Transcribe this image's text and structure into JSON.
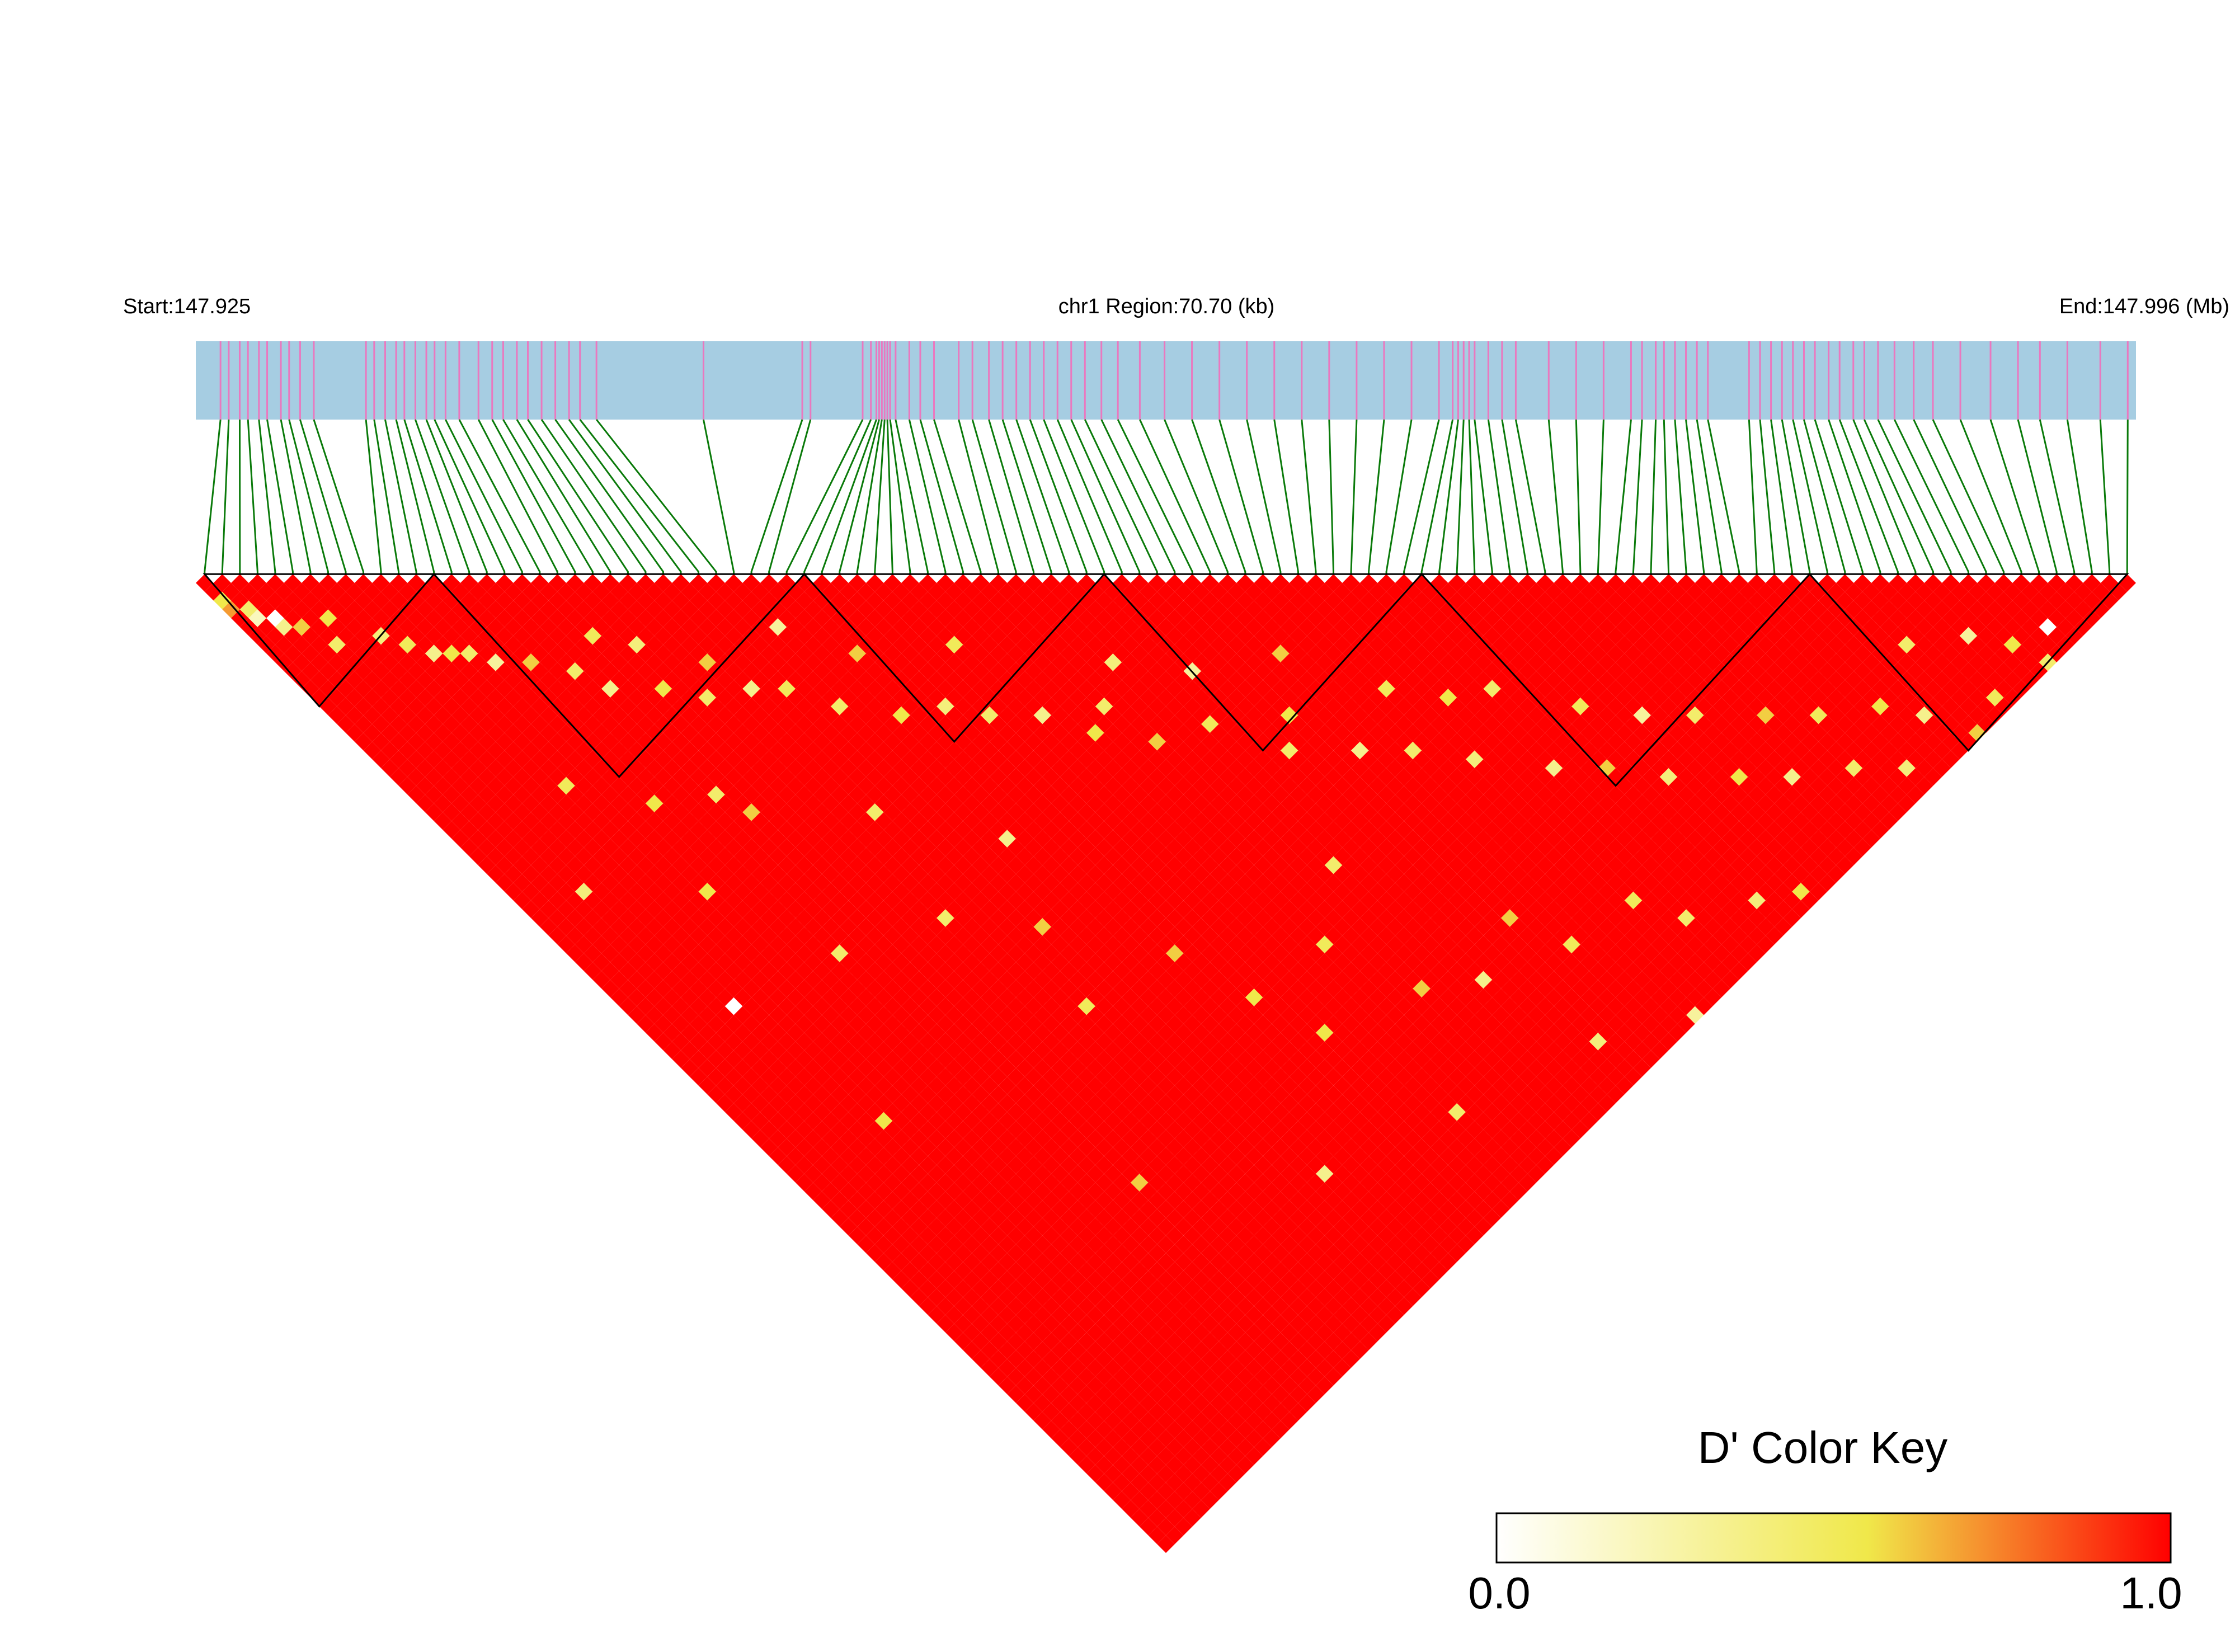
{
  "chart_data": {
    "type": "heatmap",
    "header": {
      "start_label": "Start:147.925",
      "region_label": "chr1 Region:70.70 (kb)",
      "end_label": "End:147.996 (Mb)"
    },
    "region": {
      "chrom": "chr1",
      "start_mb": 147.925,
      "end_mb": 147.996,
      "length_kb": 70.7
    },
    "snp_count": 110,
    "snp_positions_kb": [
      0.9,
      1.2,
      1.6,
      1.9,
      2.3,
      2.6,
      3.1,
      3.4,
      3.8,
      4.3,
      6.2,
      6.5,
      6.9,
      7.3,
      7.6,
      8.0,
      8.4,
      8.7,
      9.1,
      9.6,
      10.3,
      10.8,
      11.2,
      11.7,
      12.1,
      12.6,
      13.1,
      13.6,
      14.0,
      14.6,
      18.5,
      22.1,
      22.4,
      24.3,
      24.6,
      24.8,
      24.9,
      25.0,
      25.1,
      25.2,
      25.3,
      25.5,
      26.0,
      26.4,
      26.9,
      27.8,
      28.3,
      28.9,
      29.4,
      29.9,
      30.4,
      30.9,
      31.4,
      31.9,
      32.4,
      33.0,
      33.6,
      34.4,
      35.3,
      36.3,
      37.3,
      38.3,
      39.3,
      40.3,
      41.3,
      42.3,
      43.3,
      44.3,
      45.3,
      45.8,
      46.0,
      46.2,
      46.4,
      46.6,
      47.1,
      47.6,
      48.1,
      49.3,
      50.3,
      51.3,
      52.3,
      52.7,
      53.2,
      53.5,
      53.9,
      54.3,
      54.7,
      55.1,
      56.6,
      57.0,
      57.4,
      57.8,
      58.2,
      58.6,
      59.0,
      59.5,
      59.9,
      60.4,
      60.8,
      61.3,
      61.9,
      62.6,
      63.3,
      64.3,
      65.4,
      66.4,
      67.2,
      68.2,
      69.4,
      70.4
    ],
    "blocks": [
      {
        "from_snp": 1,
        "to_snp": 14
      },
      {
        "from_snp": 14,
        "to_snp": 35
      },
      {
        "from_snp": 35,
        "to_snp": 52
      },
      {
        "from_snp": 52,
        "to_snp": 70
      },
      {
        "from_snp": 70,
        "to_snp": 92
      },
      {
        "from_snp": 92,
        "to_snp": 110
      }
    ],
    "dprime_default": 1.0,
    "dprime_cells": [
      [
        1,
        3,
        0.55
      ],
      [
        1,
        4,
        0.7
      ],
      [
        2,
        5,
        0.45
      ],
      [
        2,
        6,
        0.2
      ],
      [
        3,
        7,
        0.0
      ],
      [
        3,
        8,
        0.35
      ],
      [
        4,
        9,
        0.6
      ],
      [
        5,
        12,
        0.45
      ],
      [
        6,
        10,
        0.55
      ],
      [
        8,
        14,
        0.4
      ],
      [
        9,
        16,
        0.5
      ],
      [
        10,
        18,
        0.35
      ],
      [
        11,
        19,
        0.55
      ],
      [
        12,
        20,
        0.45
      ],
      [
        13,
        22,
        0.3
      ],
      [
        15,
        24,
        0.6
      ],
      [
        17,
        27,
        0.45
      ],
      [
        18,
        30,
        0.35
      ],
      [
        20,
        26,
        0.5
      ],
      [
        21,
        33,
        0.55
      ],
      [
        22,
        29,
        0.4
      ],
      [
        23,
        36,
        0.45
      ],
      [
        25,
        34,
        0.6
      ],
      [
        26,
        38,
        0.35
      ],
      [
        28,
        40,
        0.5
      ],
      [
        30,
        44,
        0.45
      ],
      [
        31,
        36,
        0.3
      ],
      [
        33,
        48,
        0.55
      ],
      [
        34,
        42,
        0.6
      ],
      [
        36,
        50,
        0.4
      ],
      [
        38,
        53,
        0.45
      ],
      [
        40,
        47,
        0.5
      ],
      [
        41,
        56,
        0.35
      ],
      [
        43,
        60,
        0.55
      ],
      [
        45,
        59,
        0.45
      ],
      [
        46,
        64,
        0.6
      ],
      [
        48,
        57,
        0.4
      ],
      [
        50,
        66,
        0.5
      ],
      [
        52,
        62,
        0.3
      ],
      [
        53,
        72,
        0.45
      ],
      [
        55,
        70,
        0.55
      ],
      [
        57,
        76,
        0.35
      ],
      [
        58,
        66,
        0.6
      ],
      [
        60,
        79,
        0.45
      ],
      [
        62,
        74,
        0.5
      ],
      [
        63,
        83,
        0.4
      ],
      [
        65,
        78,
        0.55
      ],
      [
        67,
        88,
        0.35
      ],
      [
        68,
        80,
        0.45
      ],
      [
        70,
        91,
        0.6
      ],
      [
        72,
        86,
        0.5
      ],
      [
        73,
        95,
        0.4
      ],
      [
        75,
        90,
        0.3
      ],
      [
        77,
        99,
        0.55
      ],
      [
        78,
        93,
        0.45
      ],
      [
        80,
        102,
        0.35
      ],
      [
        82,
        97,
        0.6
      ],
      [
        84,
        105,
        0.45
      ],
      [
        85,
        100,
        0.5
      ],
      [
        87,
        108,
        0.4
      ],
      [
        89,
        103,
        0.55
      ],
      [
        91,
        106,
        0.35
      ],
      [
        93,
        110,
        0.6
      ],
      [
        94,
        101,
        0.45
      ],
      [
        96,
        109,
        0.5
      ],
      [
        98,
        104,
        0.3
      ],
      [
        100,
        107,
        0.55
      ],
      [
        101,
        110,
        0.45
      ],
      [
        103,
        108,
        0.0
      ],
      [
        5,
        40,
        0.4
      ],
      [
        9,
        70,
        0.55
      ],
      [
        16,
        58,
        0.45
      ],
      [
        20,
        88,
        0.6
      ],
      [
        27,
        75,
        0.5
      ],
      [
        31,
        98,
        0.35
      ],
      [
        37,
        84,
        0.55
      ],
      [
        42,
        102,
        0.45
      ],
      [
        47,
        93,
        0.6
      ],
      [
        54,
        106,
        0.4
      ],
      [
        58,
        99,
        0.5
      ],
      [
        61,
        110,
        0.3
      ],
      [
        12,
        47,
        0.55
      ],
      [
        24,
        62,
        0.45
      ],
      [
        35,
        77,
        0.6
      ],
      [
        44,
        85,
        0.5
      ],
      [
        51,
        96,
        0.35
      ],
      [
        66,
        104,
        0.45
      ],
      [
        7,
        55,
        0.0
      ],
      [
        29,
        68,
        0.6
      ],
      [
        39,
        90,
        0.55
      ],
      [
        49,
        81,
        0.45
      ],
      [
        56,
        94,
        0.6
      ],
      [
        64,
        100,
        0.5
      ],
      [
        71,
        107,
        0.4
      ],
      [
        74,
        109,
        0.55
      ],
      [
        19,
        45,
        0.6
      ],
      [
        26,
        52,
        0.45
      ],
      [
        32,
        61,
        0.35
      ],
      [
        10,
        33,
        0.5
      ],
      [
        14,
        39,
        0.55
      ],
      [
        18,
        42,
        0.45
      ]
    ],
    "color_key": {
      "title": "D' Color Key",
      "min_label": "0.0",
      "max_label": "1.0",
      "stops": [
        "#ffffff",
        "#f0e84a",
        "#ff0000"
      ]
    },
    "colors": {
      "chrom_band": "#a6cde2",
      "snp_tick": "#ea78bf",
      "connector": "#0a7a0a",
      "block_outline": "#000000"
    }
  }
}
